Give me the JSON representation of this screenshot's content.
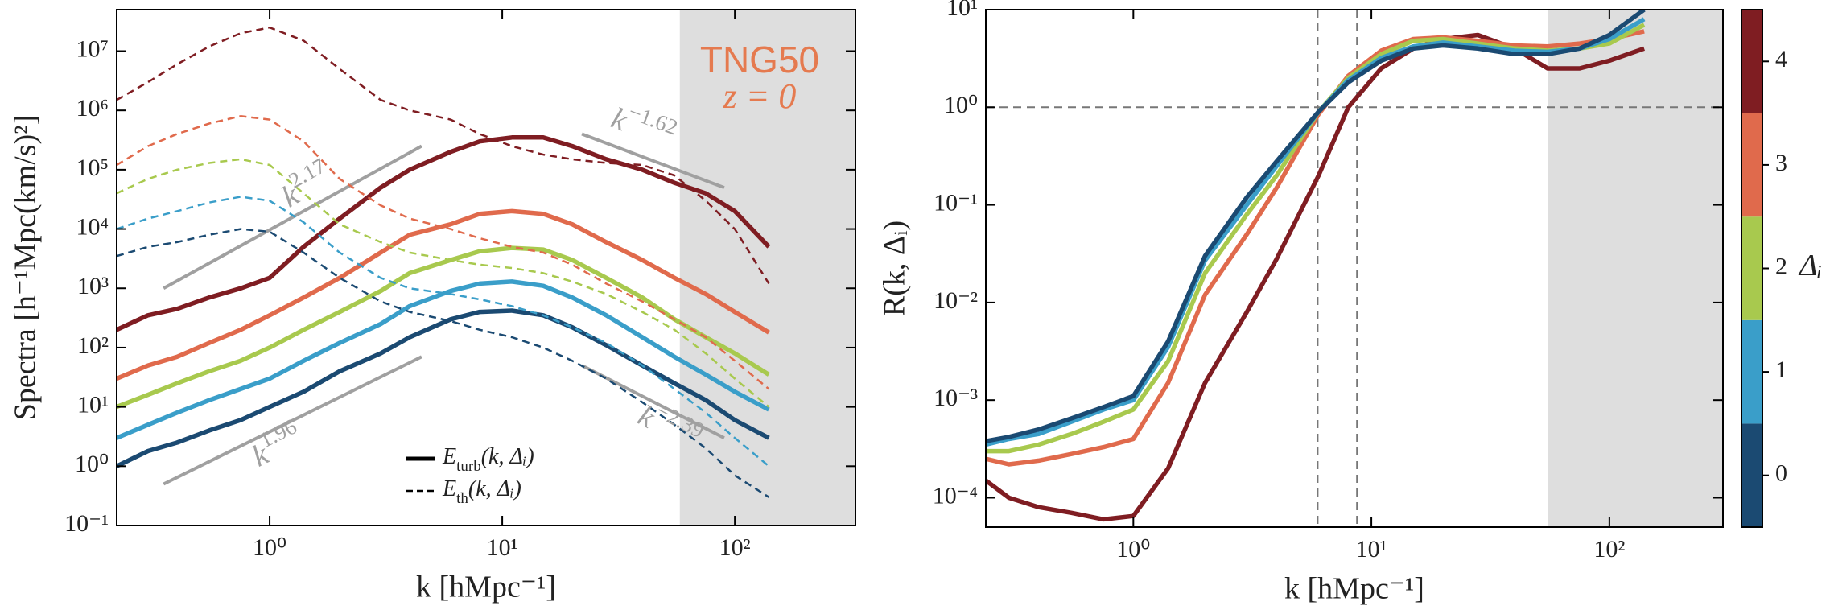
{
  "chart_data": [
    {
      "type": "line",
      "log_x": true,
      "log_y": true,
      "xlabel": "k [hMpc⁻¹]",
      "ylabel": "Spectra [h⁻¹Mpc(km/s)²]",
      "xlim": [
        0.22,
        330
      ],
      "ylim": [
        0.1,
        50000000
      ],
      "xticks": [
        {
          "value": 1,
          "label": "10⁰"
        },
        {
          "value": 10,
          "label": "10¹"
        },
        {
          "value": 100,
          "label": "10²"
        }
      ],
      "yticks": [
        {
          "value": 0.1,
          "label": "10⁻¹"
        },
        {
          "value": 1,
          "label": "10⁰"
        },
        {
          "value": 10,
          "label": "10¹"
        },
        {
          "value": 100,
          "label": "10²"
        },
        {
          "value": 1000,
          "label": "10³"
        },
        {
          "value": 10000,
          "label": "10⁴"
        },
        {
          "value": 100000,
          "label": "10⁵"
        },
        {
          "value": 1000000,
          "label": "10⁶"
        },
        {
          "value": 10000000,
          "label": "10⁷"
        }
      ],
      "shaded_xrange": [
        58,
        330
      ],
      "annotations": [
        "TNG50",
        "z = 0"
      ],
      "annotation_color": "#e57a4f",
      "legend": [
        {
          "base": "E",
          "sub": "turb",
          "tail": "(k, Δᵢ)",
          "style": "solid"
        },
        {
          "base": "E",
          "sub": "th",
          "tail": "(k, Δᵢ)",
          "style": "dashed"
        }
      ],
      "x": [
        0.22,
        0.3,
        0.4,
        0.55,
        0.75,
        1.0,
        1.4,
        2,
        3,
        4,
        6,
        8,
        11,
        15,
        20,
        28,
        40,
        55,
        75,
        100,
        140
      ],
      "series": [
        {
          "color": "#7f1d22",
          "style": "solid",
          "values": [
            200,
            350,
            450,
            700,
            1000,
            1500,
            5000,
            15000,
            50000,
            100000,
            200000,
            300000,
            350000,
            350000,
            250000,
            150000,
            100000,
            60000,
            40000,
            20000,
            5000
          ]
        },
        {
          "color": "#e06a4c",
          "style": "solid",
          "values": [
            30,
            50,
            70,
            120,
            200,
            350,
            700,
            1500,
            4000,
            8000,
            12000,
            18000,
            20000,
            18000,
            12000,
            6000,
            3000,
            1500,
            800,
            400,
            180
          ]
        },
        {
          "color": "#a8c94e",
          "style": "solid",
          "values": [
            10,
            16,
            25,
            40,
            60,
            100,
            200,
            400,
            900,
            1800,
            3000,
            4200,
            4800,
            4500,
            3000,
            1500,
            700,
            300,
            150,
            80,
            35
          ]
        },
        {
          "color": "#3a9ec9",
          "style": "solid",
          "values": [
            3,
            5,
            8,
            13,
            20,
            30,
            60,
            120,
            250,
            500,
            900,
            1200,
            1300,
            1100,
            700,
            350,
            150,
            70,
            35,
            18,
            9
          ]
        },
        {
          "color": "#1b4a72",
          "style": "solid",
          "values": [
            1,
            1.8,
            2.5,
            4,
            6,
            10,
            18,
            40,
            80,
            150,
            300,
            400,
            420,
            350,
            220,
            110,
            50,
            25,
            13,
            6,
            3
          ]
        },
        {
          "color": "#7f1d22",
          "style": "dashed",
          "values": [
            1500000,
            3000000,
            6000000,
            12000000,
            20000000,
            25000000,
            15000000,
            5000000,
            1500000,
            1000000,
            700000,
            400000,
            250000,
            180000,
            150000,
            130000,
            120000,
            80000,
            30000,
            10000,
            1200
          ]
        },
        {
          "color": "#e06a4c",
          "style": "dashed",
          "values": [
            120000,
            250000,
            400000,
            600000,
            800000,
            700000,
            300000,
            70000,
            25000,
            15000,
            10000,
            7000,
            5000,
            4000,
            2500,
            1200,
            600,
            300,
            150,
            60,
            20
          ]
        },
        {
          "color": "#a8c94e",
          "style": "dashed",
          "values": [
            40000,
            70000,
            100000,
            130000,
            150000,
            120000,
            40000,
            12000,
            6000,
            4000,
            3000,
            2500,
            2200,
            1800,
            1300,
            800,
            400,
            200,
            80,
            30,
            10
          ]
        },
        {
          "color": "#3a9ec9",
          "style": "dashed",
          "values": [
            10000,
            15000,
            20000,
            28000,
            35000,
            30000,
            13000,
            4000,
            1500,
            1000,
            800,
            650,
            500,
            350,
            220,
            120,
            50,
            20,
            8,
            3,
            1
          ]
        },
        {
          "color": "#1b4a72",
          "style": "dashed",
          "values": [
            3500,
            5000,
            6000,
            8000,
            10000,
            9000,
            4000,
            1500,
            600,
            400,
            280,
            200,
            150,
            100,
            60,
            30,
            12,
            5,
            2,
            0.7,
            0.3
          ]
        }
      ],
      "guides": [
        {
          "base": "k",
          "exp": "2.17",
          "x": [
            0.35,
            4.5
          ],
          "values": [
            1000,
            250000
          ]
        },
        {
          "base": "k",
          "exp": "−1.62",
          "x": [
            22,
            90
          ],
          "values": [
            400000,
            50000
          ]
        },
        {
          "base": "k",
          "exp": "1.96",
          "x": [
            0.35,
            4.5
          ],
          "values": [
            0.5,
            70
          ]
        },
        {
          "base": "k",
          "exp": "−2.39",
          "x": [
            22,
            90
          ],
          "values": [
            50,
            3
          ]
        }
      ],
      "guide_color": "#a0a0a0"
    },
    {
      "type": "line",
      "log_x": true,
      "log_y": true,
      "xlabel": "k [hMpc⁻¹]",
      "ylabel": "R(k, Δᵢ)",
      "xlim": [
        0.24,
        300
      ],
      "ylim": [
        5e-05,
        10
      ],
      "xticks": [
        {
          "value": 1,
          "label": "10⁰"
        },
        {
          "value": 10,
          "label": "10¹"
        },
        {
          "value": 100,
          "label": "10²"
        }
      ],
      "yticks": [
        {
          "value": 0.0001,
          "label": "10⁻⁴"
        },
        {
          "value": 0.001,
          "label": "10⁻³"
        },
        {
          "value": 0.01,
          "label": "10⁻²"
        },
        {
          "value": 0.1,
          "label": "10⁻¹"
        },
        {
          "value": 1,
          "label": "10⁰"
        },
        {
          "value": 10,
          "label": "10¹"
        }
      ],
      "shaded_xrange": [
        55,
        300
      ],
      "hlines": [
        1
      ],
      "vlines": [
        5.95,
        8.7
      ],
      "x": [
        0.24,
        0.3,
        0.4,
        0.55,
        0.75,
        1.0,
        1.4,
        2,
        3,
        4,
        6,
        8,
        11,
        15,
        20,
        28,
        40,
        55,
        75,
        100,
        140
      ],
      "series": [
        {
          "color": "#7f1d22",
          "style": "solid",
          "values": [
            0.00015,
            0.0001,
            8e-05,
            7e-05,
            6e-05,
            6.5e-05,
            0.0002,
            0.0015,
            0.008,
            0.028,
            0.2,
            1,
            2.5,
            4,
            5,
            5.5,
            4,
            2.5,
            2.5,
            3,
            4
          ]
        },
        {
          "color": "#e06a4c",
          "style": "solid",
          "values": [
            0.00025,
            0.00022,
            0.00024,
            0.00028,
            0.00033,
            0.0004,
            0.0015,
            0.012,
            0.05,
            0.15,
            0.85,
            2.1,
            3.8,
            5,
            5.2,
            4.8,
            4.3,
            4.2,
            4.5,
            5,
            6
          ]
        },
        {
          "color": "#a8c94e",
          "style": "solid",
          "values": [
            0.0003,
            0.0003,
            0.00035,
            0.00045,
            0.0006,
            0.0008,
            0.0025,
            0.02,
            0.08,
            0.2,
            0.9,
            2,
            3.5,
            4.8,
            5,
            4.5,
            4,
            3.8,
            4,
            4.5,
            7
          ]
        },
        {
          "color": "#3a9ec9",
          "style": "solid",
          "values": [
            0.00035,
            0.0004,
            0.00045,
            0.0006,
            0.0008,
            0.001,
            0.0035,
            0.027,
            0.1,
            0.25,
            0.9,
            1.9,
            3.2,
            4.2,
            4.6,
            4.2,
            3.8,
            3.7,
            4,
            5,
            8
          ]
        },
        {
          "color": "#1b4a72",
          "style": "solid",
          "values": [
            0.00038,
            0.00042,
            0.0005,
            0.00065,
            0.00085,
            0.0011,
            0.004,
            0.03,
            0.12,
            0.28,
            0.9,
            1.8,
            3,
            4,
            4.3,
            4,
            3.5,
            3.5,
            4,
            5.5,
            10
          ]
        }
      ],
      "colorbar": {
        "label": "Δᵢ",
        "ticks": [
          0,
          1,
          2,
          3,
          4
        ],
        "colors": [
          "#1b4a72",
          "#3a9ec9",
          "#a8c94e",
          "#e06a4c",
          "#7f1d22"
        ]
      }
    }
  ]
}
